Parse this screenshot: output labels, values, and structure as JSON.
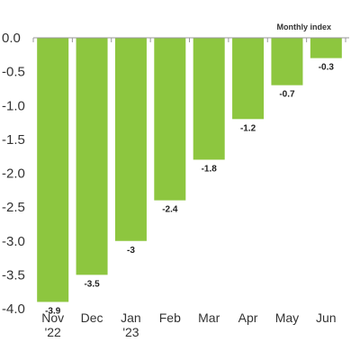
{
  "chart_data": {
    "type": "bar",
    "categories": [
      [
        "Nov",
        "'22"
      ],
      [
        "Dec"
      ],
      [
        "Jan",
        "'23"
      ],
      [
        "Feb"
      ],
      [
        "Mar"
      ],
      [
        "Apr"
      ],
      [
        "May"
      ],
      [
        "Jun"
      ]
    ],
    "values": [
      -3.9,
      -3.5,
      -3,
      -2.4,
      -1.8,
      -1.2,
      -0.7,
      -0.3
    ],
    "value_labels": [
      "-3.9",
      "-3.5",
      "-3",
      "-2.4",
      "-1.8",
      "-1.2",
      "-0.7",
      "-0.3"
    ],
    "series": [
      {
        "name": "Monthly index",
        "values": [
          -3.9,
          -3.5,
          -3,
          -2.4,
          -1.8,
          -1.2,
          -0.7,
          -0.3
        ]
      }
    ],
    "yticks": [
      0,
      -0.5,
      -1,
      -1.5,
      -2,
      -2.5,
      -3,
      -3.5,
      -4
    ],
    "ytick_labels": [
      "0.0",
      "-0.5",
      "-1.0",
      "-1.5",
      "-2.0",
      "-2.5",
      "-3.0",
      "-3.5",
      "-4.0"
    ],
    "ylim": [
      -4,
      0
    ],
    "title": "",
    "xlabel": "",
    "ylabel": "",
    "grid": false,
    "legend": "top-right",
    "bar_color": "#8dc63f",
    "axis_color": "#999999"
  }
}
